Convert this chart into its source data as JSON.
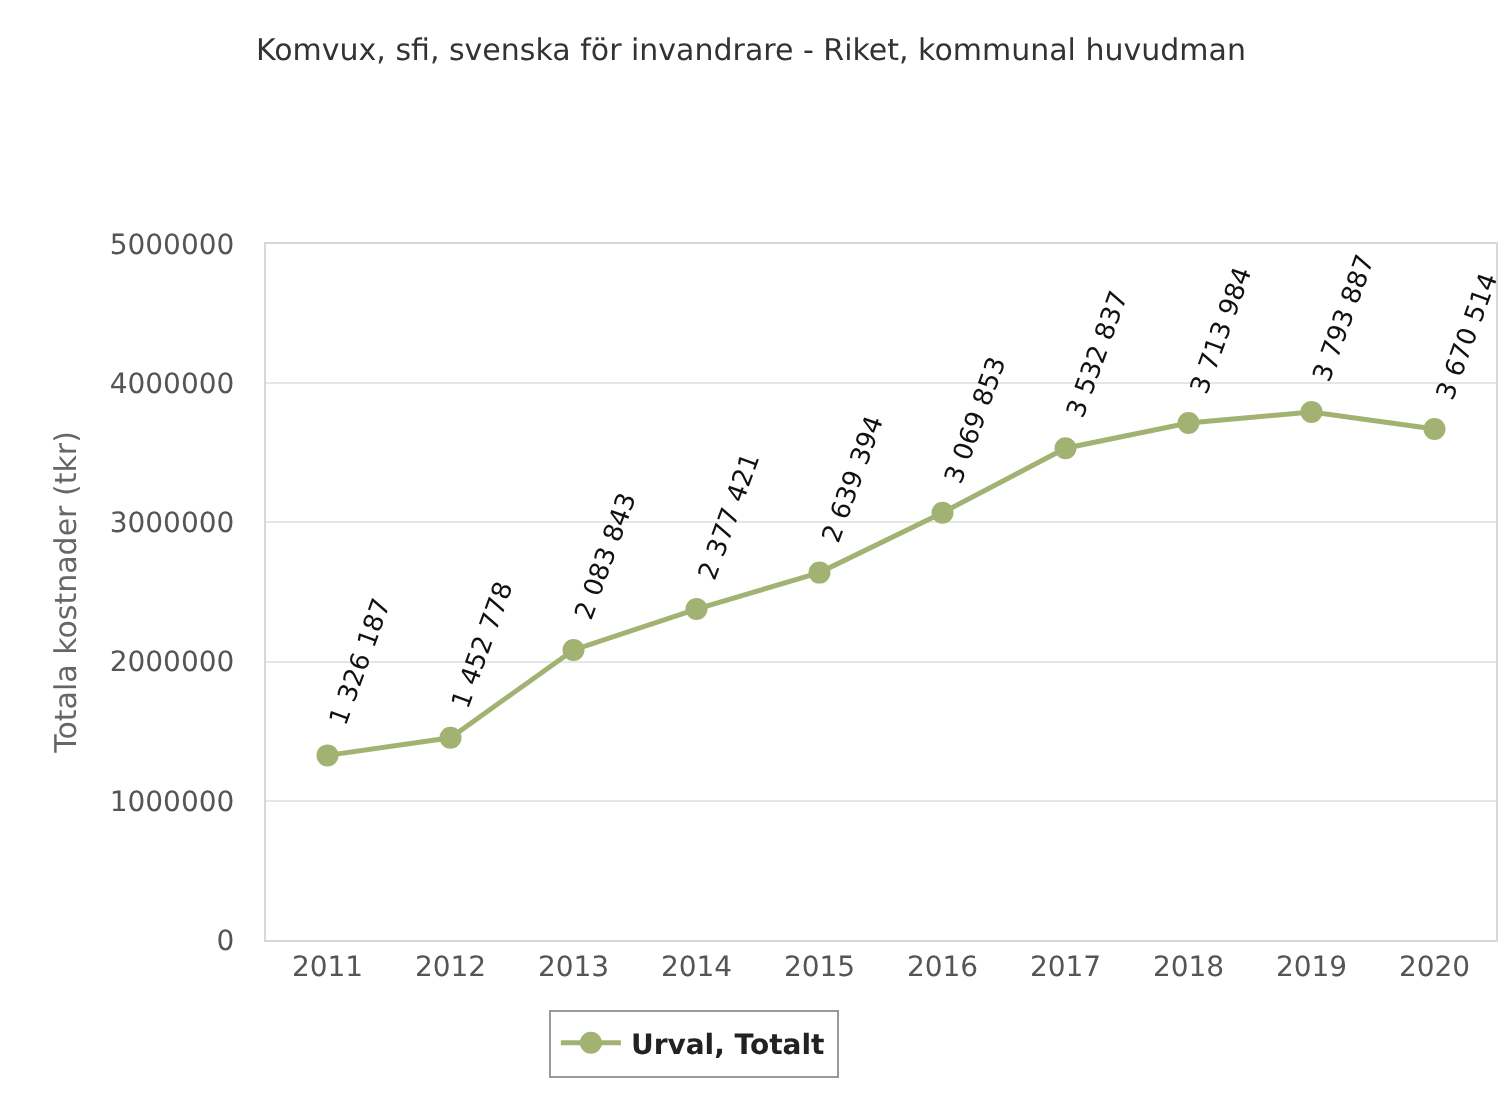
{
  "chart_data": {
    "type": "line",
    "title": "Komvux, sfi, svenska för invandrare - Riket, kommunal huvudman",
    "ylabel": "Totala kostnader (tkr)",
    "categories": [
      "2011",
      "2012",
      "2013",
      "2014",
      "2015",
      "2016",
      "2017",
      "2018",
      "2019",
      "2020"
    ],
    "series": [
      {
        "name": "Urval, Totalt",
        "color": "#a2b273",
        "values": [
          1326187,
          1452778,
          2083843,
          2377421,
          2639394,
          3069853,
          3532837,
          3713984,
          3793887,
          3670514
        ]
      }
    ],
    "ylim": [
      0,
      5000000
    ],
    "yticks": [
      0,
      1000000,
      2000000,
      3000000,
      4000000,
      5000000
    ],
    "grid": "y",
    "legend": "bottom",
    "marker": "circle",
    "line_style": "solid",
    "data_labels": true
  }
}
